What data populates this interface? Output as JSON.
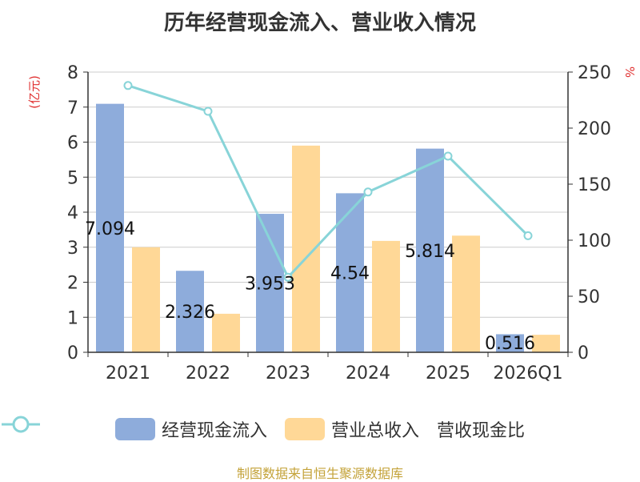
{
  "header": {
    "title": "历年经营现金流入、营业收入情况"
  },
  "chart_data": {
    "type": "bar",
    "title": "历年经营现金流入、营业收入情况",
    "categories": [
      "2021",
      "2022",
      "2023",
      "2024",
      "2025",
      "2026Q1"
    ],
    "left_axis": {
      "unit_label": "(亿元)",
      "range": [
        0,
        8
      ],
      "ticks": [
        0,
        1,
        2,
        3,
        4,
        5,
        6,
        7,
        8
      ]
    },
    "right_axis": {
      "unit_label": "%",
      "range": [
        0,
        250
      ],
      "ticks": [
        0,
        50,
        100,
        150,
        200,
        250
      ]
    },
    "series": [
      {
        "name": "经营现金流入",
        "type": "bar",
        "axis": "left",
        "color": "#8eacdb",
        "values": [
          7.094,
          2.326,
          3.953,
          4.54,
          5.814,
          0.516
        ],
        "labels": [
          "7.094",
          "2.326",
          "3.953",
          "4.54",
          "5.814",
          "0.516"
        ]
      },
      {
        "name": "营业总收入",
        "type": "bar",
        "axis": "left",
        "color": "#ffd897",
        "values": [
          3.0,
          1.1,
          5.9,
          3.18,
          3.33,
          0.5
        ]
      },
      {
        "name": "营收现金比",
        "type": "line",
        "axis": "right",
        "color": "#88d4d8",
        "values": [
          238,
          215,
          67,
          143,
          175,
          104
        ]
      }
    ],
    "grid": true,
    "legend_position": "bottom"
  },
  "source": "制图数据来自恒生聚源数据库"
}
